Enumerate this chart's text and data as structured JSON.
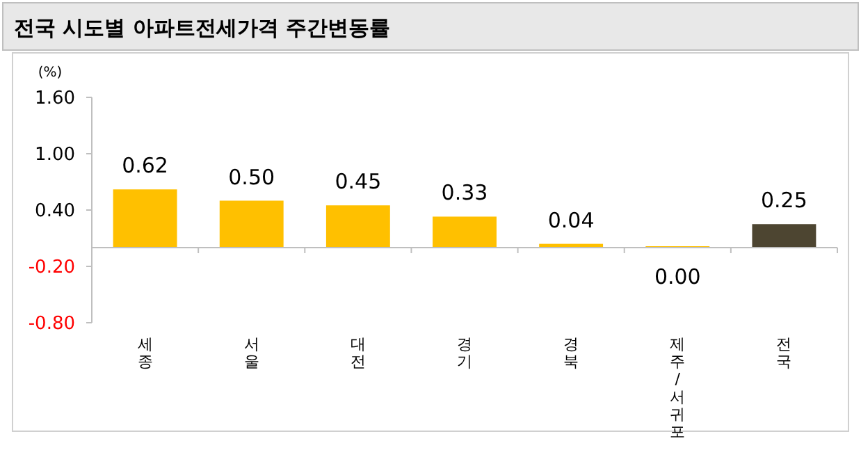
{
  "chart_data": {
    "type": "bar",
    "title": "전국 시도별 아파트전세가격 주간변동률",
    "ylabel": "(%)",
    "categories": [
      "세종",
      "서울",
      "대전",
      "경기",
      "경북",
      "제주/서귀포",
      "전국"
    ],
    "values": [
      0.62,
      0.5,
      0.45,
      0.33,
      0.04,
      0.0,
      0.25
    ],
    "colors": [
      "#ffc000",
      "#ffc000",
      "#ffc000",
      "#ffc000",
      "#ffc000",
      "#ffc000",
      "#4d4531"
    ],
    "ylim": [
      -0.8,
      1.6
    ],
    "yticks": [
      {
        "value": 1.6,
        "label": "1.60"
      },
      {
        "value": 1.0,
        "label": "1.00"
      },
      {
        "value": 0.4,
        "label": "0.40"
      },
      {
        "value": -0.2,
        "label": "-0.20"
      },
      {
        "value": -0.8,
        "label": "-0.80"
      }
    ],
    "value_labels": [
      "0.62",
      "0.50",
      "0.45",
      "0.33",
      "0.04",
      "0.00",
      "0.25"
    ]
  }
}
